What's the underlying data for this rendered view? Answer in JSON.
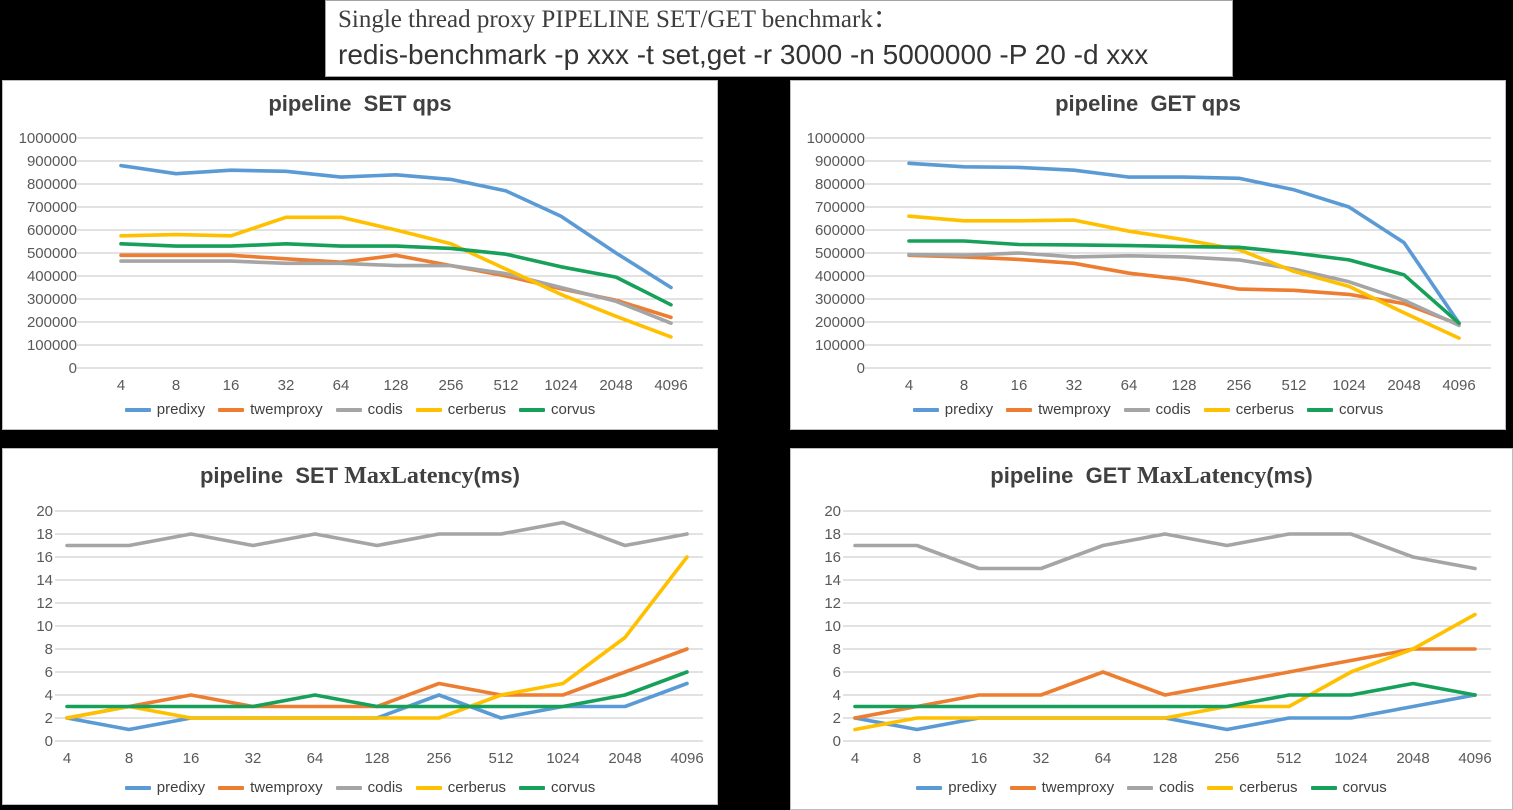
{
  "header": {
    "title_line1": "Single thread proxy PIPELINE SET/GET benchmark：",
    "title_line2": "redis-benchmark -p xxx -t set,get -r 3000 -n 5000000 -P 20 -d xxx"
  },
  "series_colors": {
    "predixy": "#5B9BD5",
    "twemproxy": "#ED7D31",
    "codis": "#A5A5A5",
    "cerberus": "#FFC000",
    "corvus": "#16A05A"
  },
  "legend_items": [
    "predixy",
    "twemproxy",
    "codis",
    "cerberus",
    "corvus"
  ],
  "chart_data": [
    {
      "type": "line",
      "title": "pipeline  SET qps",
      "title_segments": [
        {
          "text": "pipeline  SET qps",
          "font": "sans"
        }
      ],
      "layout": "qps",
      "xlabel": "",
      "ylabel": "",
      "grid": true,
      "legend_position": "bottom",
      "x_tick_labels": [
        "4",
        "8",
        "16",
        "32",
        "64",
        "128",
        "256",
        "512",
        "1024",
        "2048",
        "4096"
      ],
      "ylim": [
        0,
        1000000
      ],
      "ytick_step": 100000,
      "series": [
        {
          "name": "predixy",
          "values": [
            880000,
            845000,
            860000,
            855000,
            830000,
            840000,
            820000,
            770000,
            660000,
            500000,
            350000
          ]
        },
        {
          "name": "twemproxy",
          "values": [
            490000,
            490000,
            490000,
            475000,
            460000,
            490000,
            445000,
            400000,
            345000,
            295000,
            220000
          ]
        },
        {
          "name": "codis",
          "values": [
            465000,
            465000,
            465000,
            455000,
            455000,
            445000,
            445000,
            410000,
            350000,
            290000,
            195000
          ]
        },
        {
          "name": "cerberus",
          "values": [
            575000,
            580000,
            575000,
            655000,
            655000,
            600000,
            540000,
            430000,
            320000,
            225000,
            135000
          ]
        },
        {
          "name": "corvus",
          "values": [
            540000,
            530000,
            530000,
            540000,
            530000,
            530000,
            520000,
            495000,
            440000,
            395000,
            275000
          ]
        }
      ]
    },
    {
      "type": "line",
      "title": "pipeline  GET qps",
      "title_segments": [
        {
          "text": "pipeline  GET qps",
          "font": "sans"
        }
      ],
      "layout": "qps",
      "xlabel": "",
      "ylabel": "",
      "grid": true,
      "legend_position": "bottom",
      "x_tick_labels": [
        "4",
        "8",
        "16",
        "32",
        "64",
        "128",
        "256",
        "512",
        "1024",
        "2048",
        "4096"
      ],
      "ylim": [
        0,
        1000000
      ],
      "ytick_step": 100000,
      "series": [
        {
          "name": "predixy",
          "values": [
            890000,
            875000,
            872000,
            860000,
            830000,
            830000,
            825000,
            775000,
            700000,
            545000,
            195000
          ]
        },
        {
          "name": "twemproxy",
          "values": [
            490000,
            483000,
            472000,
            455000,
            412000,
            385000,
            343000,
            338000,
            320000,
            280000,
            190000
          ]
        },
        {
          "name": "codis",
          "values": [
            493000,
            490000,
            500000,
            483000,
            488000,
            483000,
            470000,
            430000,
            375000,
            295000,
            185000
          ]
        },
        {
          "name": "cerberus",
          "values": [
            660000,
            640000,
            640000,
            643000,
            595000,
            558000,
            515000,
            420000,
            355000,
            240000,
            130000
          ]
        },
        {
          "name": "corvus",
          "values": [
            552000,
            552000,
            537000,
            535000,
            532000,
            528000,
            525000,
            500000,
            470000,
            405000,
            195000
          ]
        }
      ]
    },
    {
      "type": "line",
      "title": "pipeline  SET MaxLatency(ms)",
      "title_segments": [
        {
          "text": "pipeline  SET ",
          "font": "sans"
        },
        {
          "text": "MaxLatency",
          "font": "serif"
        },
        {
          "text": "(ms)",
          "font": "sans"
        }
      ],
      "layout": "lat",
      "xlabel": "",
      "ylabel": "",
      "grid": true,
      "legend_position": "bottom",
      "x_tick_labels": [
        "4",
        "8",
        "16",
        "32",
        "64",
        "128",
        "256",
        "512",
        "1024",
        "2048",
        "4096"
      ],
      "ylim": [
        0,
        20
      ],
      "ytick_step": 2,
      "series": [
        {
          "name": "predixy",
          "values": [
            2,
            1,
            2,
            2,
            2,
            2,
            4,
            2,
            3,
            3,
            5
          ]
        },
        {
          "name": "twemproxy",
          "values": [
            2,
            3,
            4,
            3,
            3,
            3,
            5,
            4,
            4,
            6,
            8
          ]
        },
        {
          "name": "codis",
          "values": [
            17,
            17,
            18,
            17,
            18,
            17,
            18,
            18,
            19,
            17,
            18
          ]
        },
        {
          "name": "cerberus",
          "values": [
            2,
            3,
            2,
            2,
            2,
            2,
            2,
            4,
            5,
            9,
            16
          ]
        },
        {
          "name": "corvus",
          "values": [
            3,
            3,
            3,
            3,
            4,
            3,
            3,
            3,
            3,
            4,
            6
          ]
        }
      ]
    },
    {
      "type": "line",
      "title": "pipeline  GET MaxLatency(ms)",
      "title_segments": [
        {
          "text": "pipeline  GET ",
          "font": "sans"
        },
        {
          "text": "MaxLatency",
          "font": "serif"
        },
        {
          "text": "(ms)",
          "font": "sans"
        }
      ],
      "layout": "lat",
      "xlabel": "",
      "ylabel": "",
      "grid": true,
      "legend_position": "bottom",
      "x_tick_labels": [
        "4",
        "8",
        "16",
        "32",
        "64",
        "128",
        "256",
        "512",
        "1024",
        "2048",
        "4096"
      ],
      "ylim": [
        0,
        20
      ],
      "ytick_step": 2,
      "series": [
        {
          "name": "predixy",
          "values": [
            2,
            1,
            2,
            2,
            2,
            2,
            1,
            2,
            2,
            3,
            4
          ]
        },
        {
          "name": "twemproxy",
          "values": [
            2,
            3,
            4,
            4,
            6,
            4,
            5,
            6,
            7,
            8,
            8
          ]
        },
        {
          "name": "codis",
          "values": [
            17,
            17,
            15,
            15,
            17,
            18,
            17,
            18,
            18,
            16,
            15
          ]
        },
        {
          "name": "cerberus",
          "values": [
            1,
            2,
            2,
            2,
            2,
            2,
            3,
            3,
            6,
            8,
            11
          ]
        },
        {
          "name": "corvus",
          "values": [
            3,
            3,
            3,
            3,
            3,
            3,
            3,
            4,
            4,
            5,
            4
          ]
        }
      ]
    }
  ]
}
